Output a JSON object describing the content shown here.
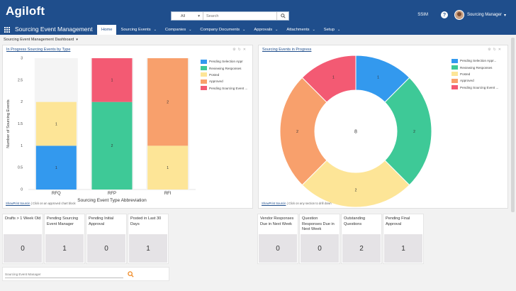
{
  "app": {
    "logo": "Agiloft",
    "title": "Sourcing Event Management"
  },
  "search": {
    "scope": "All",
    "placeholder": "Search"
  },
  "header_right": {
    "workspace": "SSIM",
    "help": "?",
    "user": "Sourcing Manager"
  },
  "nav": [
    {
      "label": "Home",
      "active": true,
      "caret": false
    },
    {
      "label": "Sourcing Events",
      "active": false,
      "caret": true
    },
    {
      "label": "Companies",
      "active": false,
      "caret": true
    },
    {
      "label": "Company Documents",
      "active": false,
      "caret": true
    },
    {
      "label": "Approvals",
      "active": false,
      "caret": true
    },
    {
      "label": "Attachments",
      "active": false,
      "caret": true
    },
    {
      "label": "Setup",
      "active": false,
      "caret": true
    }
  ],
  "dashboard": {
    "title": "Sourcing Event Management Dashboard"
  },
  "panels": {
    "bar": {
      "title": "In Progress Sourcing Events by Type",
      "footer_link": "ShowPrint Sourcin",
      "footer_text": "| Click on an approved chart block"
    },
    "donut": {
      "title": "Sourcing Events in Progress",
      "footer_link": "ShowPrint Sourcin",
      "footer_text": "| Click on any section to drill down"
    }
  },
  "colors": {
    "blue": "#3399ee",
    "green": "#3ec997",
    "yellow": "#fde597",
    "orange": "#f8a06c",
    "red": "#f35a73",
    "brand": "#1f4e8c"
  },
  "chart_data": [
    {
      "type": "bar",
      "stacked": true,
      "title": "In Progress Sourcing Events by Type",
      "xlabel": "Sourcing Event Type Abbreviation",
      "ylabel": "Number of Sourcing Events",
      "categories": [
        "RFQ",
        "RFP",
        "RFI"
      ],
      "ylim": [
        0,
        3
      ],
      "yticks": [
        "0",
        "0.5",
        "1",
        "1.5",
        "2",
        "2.5",
        "3"
      ],
      "legend_position": "right",
      "series": [
        {
          "name": "Pending Selection Appr",
          "color": "#3399ee",
          "values": [
            1,
            0,
            0
          ]
        },
        {
          "name": "Reviewing Responses",
          "color": "#3ec997",
          "values": [
            0,
            2,
            0
          ]
        },
        {
          "name": "Posted",
          "color": "#fde597",
          "values": [
            1,
            0,
            1
          ]
        },
        {
          "name": "Approved",
          "color": "#f8a06c",
          "values": [
            0,
            0,
            2
          ]
        },
        {
          "name": "Pending Sourcing Event ...",
          "color": "#f35a73",
          "values": [
            0,
            1,
            0
          ]
        }
      ]
    },
    {
      "type": "pie",
      "donut": true,
      "title": "Sourcing Events in Progress",
      "center_label": "8",
      "legend_position": "right",
      "slices": [
        {
          "name": "Pending Selection Appr...",
          "color": "#3399ee",
          "value": 1
        },
        {
          "name": "Reviewing Responses",
          "color": "#3ec997",
          "value": 2
        },
        {
          "name": "Posted",
          "color": "#fde597",
          "value": 2
        },
        {
          "name": "Approved",
          "color": "#f8a06c",
          "value": 2
        },
        {
          "name": "Pending Sourcing Event ...",
          "color": "#f35a73",
          "value": 1
        }
      ]
    }
  ],
  "tiles": [
    {
      "label": "Drafts > 1 Week Old",
      "value": "0"
    },
    {
      "label": "Pending Sourcing Event Manager",
      "value": "1"
    },
    {
      "label": "Pending Initial Approval",
      "value": "0"
    },
    {
      "label": "Posted in Last 30 Days",
      "value": "1"
    },
    {
      "label": "Vendor Responses Due in Next Week",
      "value": "0"
    },
    {
      "label": "Question Responses Due in Next Week",
      "value": "0"
    },
    {
      "label": "Outstanding Questions",
      "value": "2"
    },
    {
      "label": "Pending Final Approval",
      "value": "1"
    }
  ],
  "quick_search": {
    "placeholder": "Sourcing Event Manager"
  }
}
